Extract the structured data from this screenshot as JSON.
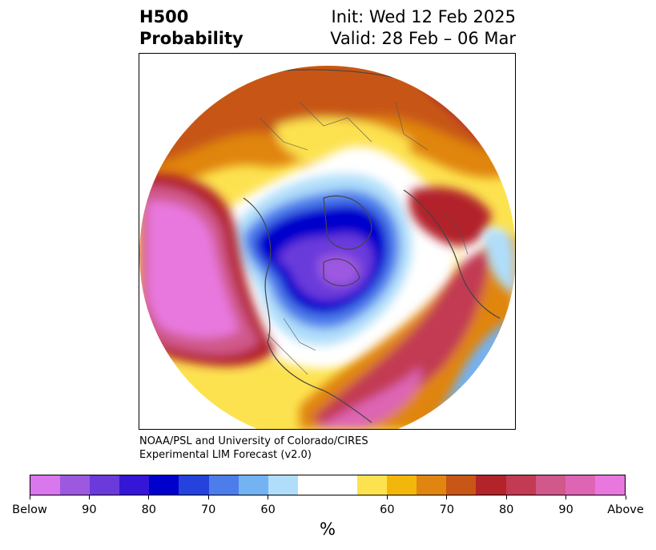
{
  "title": {
    "variable": "H500",
    "product": "Probability",
    "init": "Init: Wed 12 Feb 2025",
    "valid": "Valid: 28 Feb – 06 Mar"
  },
  "credit": {
    "line1": "NOAA/PSL and University of Colorado/CIRES",
    "line2": "Experimental LIM Forecast (v2.0)"
  },
  "colorbar": {
    "colors": [
      "#d977ec",
      "#9d58e0",
      "#6b3adb",
      "#3516d6",
      "#0000cd",
      "#2542dc",
      "#4d7deb",
      "#73b2f3",
      "#b0defa",
      "#ffffff",
      "#ffffff",
      "#fde250",
      "#f2b70a",
      "#e08510",
      "#c75617",
      "#b2242a",
      "#c23a53",
      "#d0588a",
      "#dd65b4",
      "#e878de"
    ],
    "ticks": [
      "Below",
      "90",
      "80",
      "70",
      "60",
      "60",
      "70",
      "80",
      "90",
      "Above"
    ],
    "unit": "%"
  }
}
